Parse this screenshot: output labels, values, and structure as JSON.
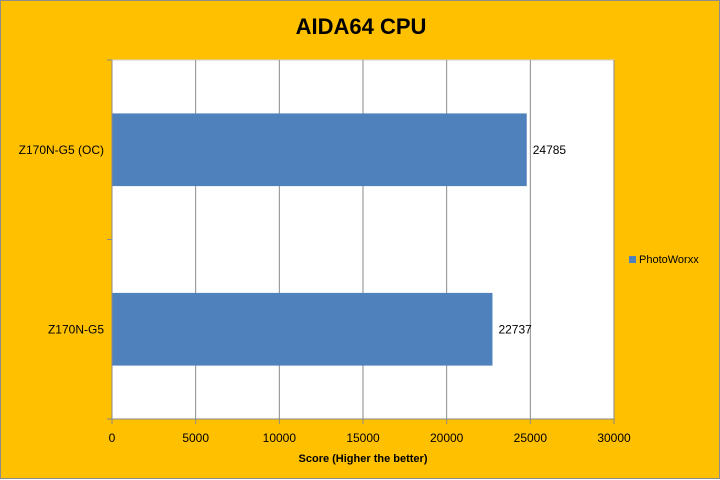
{
  "chart_data": {
    "type": "bar",
    "orientation": "horizontal",
    "title": "AIDA64 CPU",
    "xlabel": "Score (Higher the better)",
    "ylabel": "",
    "categories": [
      "Z170N-G5 (OC)",
      "Z170N-G5"
    ],
    "series": [
      {
        "name": "PhotoWorxx",
        "values": [
          24785,
          22737
        ],
        "color": "#4F81BD"
      }
    ],
    "xlim": [
      0,
      30000
    ],
    "xticks": [
      0,
      5000,
      10000,
      15000,
      20000,
      25000,
      30000
    ],
    "grid": true,
    "legend_position": "right",
    "background_color": "#FFC000",
    "plot_background_color": "#FFFFFF"
  }
}
